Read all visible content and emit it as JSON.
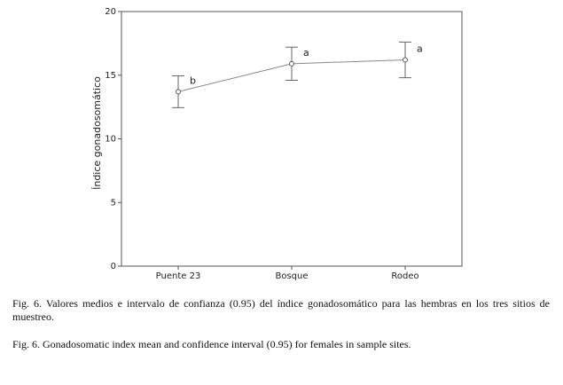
{
  "chart_data": {
    "type": "line",
    "y_label": "Índice gonadosomático",
    "categories": [
      "Puente 23",
      "Bosque",
      "Rodeo"
    ],
    "values": [
      13.7,
      15.9,
      16.2
    ],
    "errors": [
      1.25,
      1.3,
      1.4
    ],
    "annotations": [
      "b",
      "a",
      "a"
    ],
    "color": "#888888",
    "ylim": [
      0,
      20
    ],
    "yticks": [
      0,
      5,
      10,
      15,
      20
    ],
    "grid": false,
    "caption_es": "Fig. 6. Valores medios  e intervalo de confianza (0.95) del índice gonadosomático para las hembras en los tres sitios de muestreo.",
    "caption_en": "Fig. 6. Gonadosomatic index mean and confidence interval (0.95) for females in sample sites."
  }
}
